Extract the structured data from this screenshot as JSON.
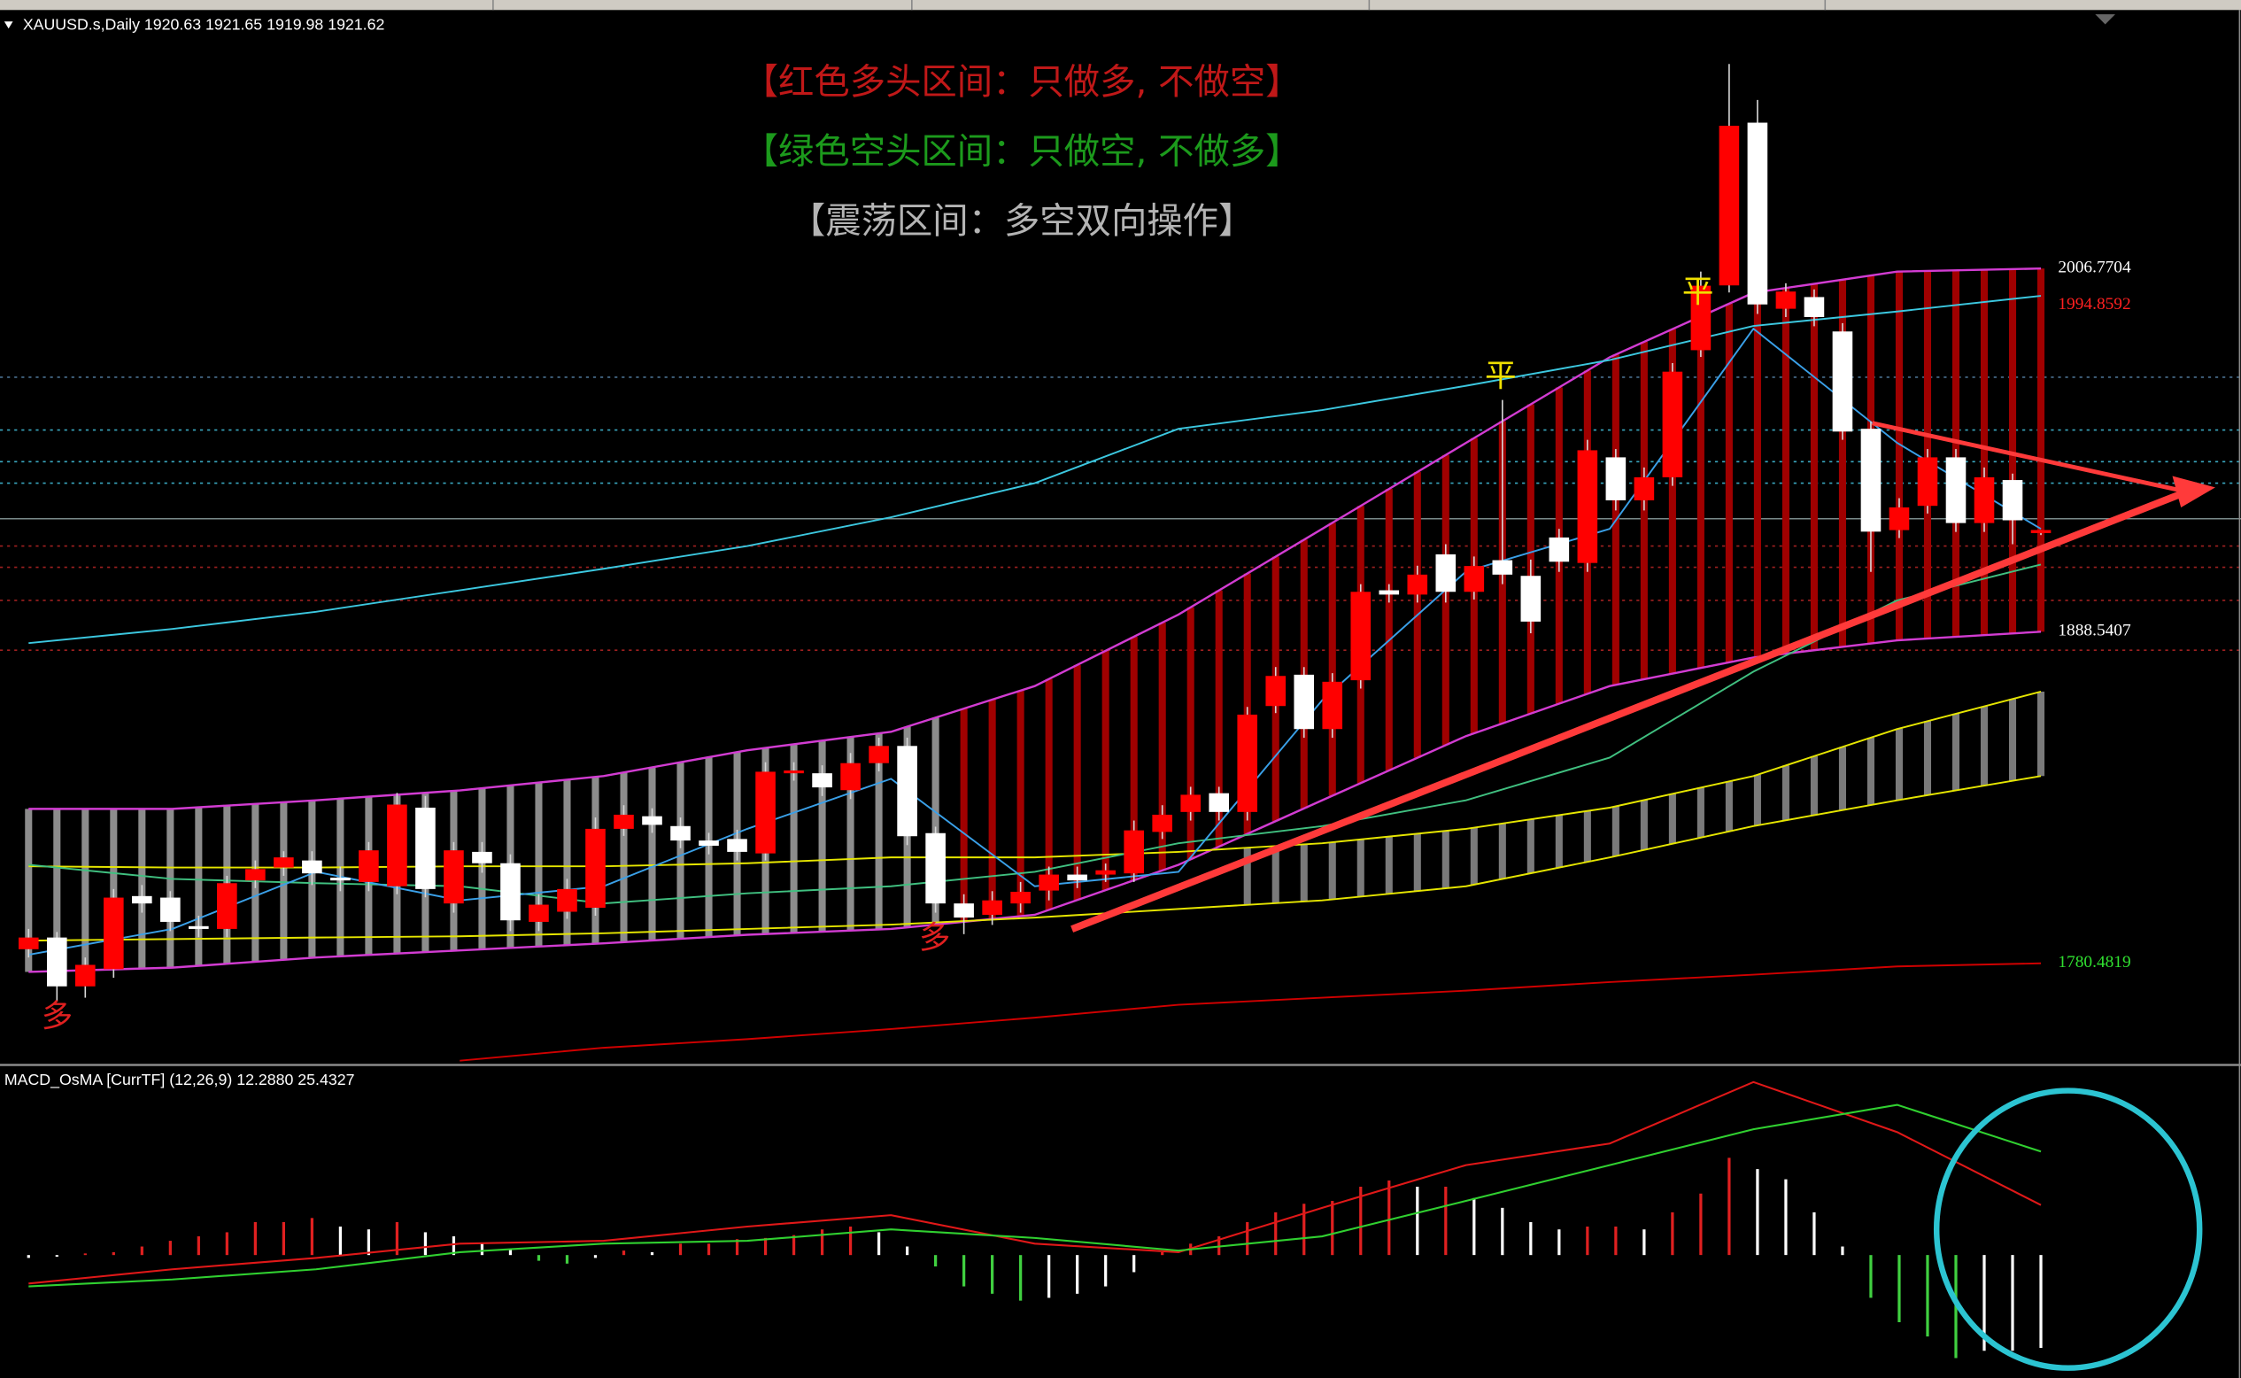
{
  "chart_data": [
    {
      "type": "candlestick",
      "header": "XAUUSD.s,Daily  1920.63 1921.65 1919.98 1921.62",
      "ylim": [
        1747.4,
        2089.6
      ],
      "up_color": "#ff0000",
      "down_color": "#ffffff",
      "wick_color": "#d8d8d8",
      "candles": [
        [
          1785.1,
          1791.7,
          1782.4,
          1788.9
        ],
        [
          1788.9,
          1790.7,
          1768.4,
          1773.0
        ],
        [
          1773.0,
          1782.4,
          1769.3,
          1780.0
        ],
        [
          1778.6,
          1804.7,
          1775.8,
          1801.9
        ],
        [
          1802.4,
          1806,
          1797,
          1800.0
        ],
        [
          1801.9,
          1804,
          1791,
          1794.0
        ],
        [
          1792.6,
          1796,
          1789,
          1791.7
        ],
        [
          1791.7,
          1809,
          1789,
          1806.6
        ],
        [
          1807.5,
          1814,
          1805,
          1811.2
        ],
        [
          1811.7,
          1817,
          1809,
          1815.0
        ],
        [
          1814.0,
          1817,
          1806,
          1809.8
        ],
        [
          1808.4,
          1812,
          1804,
          1807.5
        ],
        [
          1807.0,
          1820,
          1804,
          1817.3
        ],
        [
          1805.6,
          1836,
          1803,
          1832.2
        ],
        [
          1831.2,
          1835,
          1802,
          1804.7
        ],
        [
          1800.0,
          1820,
          1797,
          1817.3
        ],
        [
          1816.8,
          1820,
          1810,
          1813.1
        ],
        [
          1813.1,
          1816,
          1791,
          1794.5
        ],
        [
          1794.0,
          1803,
          1791,
          1799.6
        ],
        [
          1797.3,
          1808,
          1795,
          1804.7
        ],
        [
          1798.6,
          1828,
          1796,
          1824.3
        ],
        [
          1824.3,
          1832,
          1822,
          1828.9
        ],
        [
          1828.4,
          1831,
          1823,
          1825.6
        ],
        [
          1825.2,
          1828,
          1818,
          1820.5
        ],
        [
          1820.5,
          1823,
          1816,
          1818.8
        ],
        [
          1821.0,
          1824,
          1814,
          1816.8
        ],
        [
          1816.3,
          1846,
          1814,
          1842.9
        ],
        [
          1842.4,
          1846,
          1840,
          1843.3
        ],
        [
          1842.4,
          1845,
          1835,
          1837.8
        ],
        [
          1836.9,
          1849,
          1834,
          1845.7
        ],
        [
          1845.7,
          1854,
          1843,
          1851.3
        ],
        [
          1851.3,
          1854,
          1819,
          1821.9
        ],
        [
          1822.9,
          1825,
          1797,
          1800.0
        ],
        [
          1800.0,
          1803,
          1790,
          1795.4
        ],
        [
          1796.3,
          1804,
          1793,
          1801.0
        ],
        [
          1800.0,
          1807,
          1797,
          1803.8
        ],
        [
          1804.2,
          1812,
          1801,
          1809.4
        ],
        [
          1809.4,
          1812,
          1805,
          1807.5
        ],
        [
          1809.4,
          1813,
          1807,
          1810.8
        ],
        [
          1809.8,
          1827,
          1807,
          1823.8
        ],
        [
          1823.3,
          1832,
          1821,
          1828.9
        ],
        [
          1829.8,
          1838,
          1827,
          1835.4
        ],
        [
          1835.9,
          1838,
          1827,
          1829.8
        ],
        [
          1829.8,
          1864,
          1827,
          1861.5
        ],
        [
          1864.3,
          1877,
          1862,
          1874.1
        ],
        [
          1874.5,
          1877,
          1854,
          1856.8
        ],
        [
          1856.8,
          1875,
          1854,
          1872.2
        ],
        [
          1872.7,
          1904,
          1870,
          1901.5
        ],
        [
          1902.0,
          1904,
          1898,
          1900.6
        ],
        [
          1900.6,
          1910,
          1898,
          1907.1
        ],
        [
          1913.7,
          1917,
          1898,
          1901.5
        ],
        [
          1901.5,
          1913,
          1899,
          1909.9
        ],
        [
          1911.8,
          1964,
          1904,
          1907.1
        ],
        [
          1906.7,
          1912,
          1888,
          1891.8
        ],
        [
          1919.2,
          1922,
          1908,
          1911.3
        ],
        [
          1910.9,
          1951,
          1908,
          1947.6
        ],
        [
          1945.3,
          1948,
          1928,
          1931.3
        ],
        [
          1931.3,
          1942,
          1928,
          1938.8
        ],
        [
          1938.8,
          1976,
          1936,
          1973.2
        ],
        [
          1980.2,
          2005.8,
          1978,
          2001.2
        ],
        [
          2001.3,
          2073.4,
          1999,
          2053.3
        ],
        [
          2054.3,
          2061.7,
          1992,
          1995.1
        ],
        [
          1993.7,
          2002,
          1991,
          1999.3
        ],
        [
          1997.5,
          2000,
          1988,
          1991.0
        ],
        [
          1986.3,
          1989,
          1951,
          1953.7
        ],
        [
          1954.6,
          1957,
          1908,
          1921.1
        ],
        [
          1921.6,
          1932,
          1919,
          1929.0
        ],
        [
          1929.5,
          1948,
          1927,
          1945.3
        ],
        [
          1945.3,
          1948,
          1921,
          1923.9
        ],
        [
          1923.9,
          1942,
          1921,
          1938.8
        ],
        [
          1937.9,
          1940,
          1917,
          1924.8
        ],
        [
          1920.63,
          1921.65,
          1919.98,
          1921.62
        ]
      ],
      "band": {
        "color": "#d23cd2",
        "bar_colors": [
          "#8c8c8c",
          "#a00000"
        ],
        "red_from": 33,
        "upper": [
          1830.8,
          1830.8,
          1833.6,
          1836.8,
          1841.5,
          1849.9,
          1855.9,
          1870.8,
          1894.1,
          1922.0,
          1950.0,
          1977.9,
          1998.9,
          2005.8,
          2006.8
        ],
        "lower": [
          1777.7,
          1779.1,
          1782.4,
          1784.7,
          1787.0,
          1789.8,
          1791.7,
          1796.3,
          1812.6,
          1833.6,
          1854.5,
          1870.8,
          1880.1,
          1885.7,
          1888.5
        ]
      },
      "channel": {
        "color": "#e6e600",
        "bar_color": "#7a7a7a",
        "bars_from": 43,
        "upper": [
          1812.1,
          1811.7,
          1811.7,
          1812.1,
          1812.1,
          1813.1,
          1815.0,
          1815.0,
          1816.8,
          1819.6,
          1824.3,
          1831.2,
          1841.5,
          1856.8,
          1869.0
        ],
        "lower": [
          1787.9,
          1788.4,
          1788.9,
          1789.3,
          1790.3,
          1791.7,
          1793.1,
          1795.4,
          1798.2,
          1801.0,
          1805.6,
          1815.0,
          1825.2,
          1833.6,
          1841.5
        ]
      },
      "lines": [
        {
          "color": "#3cc8e0",
          "values": [
            1884.8,
            1889.4,
            1895.0,
            1902.0,
            1909.0,
            1916.4,
            1925.8,
            1936.9,
            1954.6,
            1960.7,
            1968.6,
            1977.0,
            1988.1,
            1992.8,
            1997.9
          ]
        },
        {
          "color": "#d00000",
          "values": [
            null,
            null,
            null,
            1748.8,
            1753.0,
            1755.8,
            1759.1,
            1762.8,
            1767.0,
            1769.3,
            1771.6,
            1774.4,
            1776.8,
            1779.5,
            1780.5
          ]
        },
        {
          "color": "#40c080",
          "values": [
            1812.6,
            1808.0,
            1806.6,
            1805.6,
            1800.0,
            1803.3,
            1805.6,
            1810.3,
            1819.6,
            1825.2,
            1833.6,
            1847.5,
            1875.5,
            1898.7,
            1910.4
          ]
        },
        {
          "color": "#3aa0e8",
          "values": [
            1783.3,
            1791.7,
            1810.3,
            1801.0,
            1805.6,
            1824.3,
            1840.6,
            1805.6,
            1810.3,
            1866.2,
            1908.1,
            1922.0,
            1987.2,
            1950.0,
            1922.0
          ]
        }
      ],
      "levels": [
        {
          "value": 1971.4,
          "color": "#4a7090"
        },
        {
          "value": 1954.2,
          "color": "#3aa8c0"
        },
        {
          "value": 1943.9,
          "color": "#3aa8c0"
        },
        {
          "value": 1936.9,
          "color": "#3aa8c0"
        },
        {
          "value": 1925.3,
          "color": "#7a8a8a"
        },
        {
          "value": 1916.4,
          "color": "#a02020"
        },
        {
          "value": 1909.5,
          "color": "#a02020"
        },
        {
          "value": 1898.7,
          "color": "#a02020"
        },
        {
          "value": 1882.5,
          "color": "#a02020"
        }
      ],
      "price_labels": [
        {
          "value": 2006.7704,
          "label": "2006.7704",
          "color": "#ffffff"
        },
        {
          "value": 1994.8592,
          "label": "1994.8592",
          "color": "#ff2020"
        },
        {
          "value": 1888.5407,
          "label": "1888.5407",
          "color": "#ffffff"
        },
        {
          "value": 1780.4819,
          "label": "1780.4819",
          "color": "#30e030"
        }
      ],
      "notes": [
        {
          "text": "【红色多头区间：只做多, 不做空】",
          "color": "#c01818"
        },
        {
          "text": "【绿色空头区间：只做空, 不做多】",
          "color": "#1c9a1c"
        },
        {
          "text": "【震荡区间：多空双向操作】",
          "color": "#b4b4b4"
        }
      ],
      "annotations": [
        {
          "text": "平",
          "color": "#f0e000"
        },
        {
          "text": "平",
          "color": "#f0e000"
        },
        {
          "text": "多",
          "color": "#e02020"
        },
        {
          "text": "多",
          "color": "#e02020"
        }
      ]
    },
    {
      "type": "macd",
      "label": "MACD_OsMA [CurrTF] (12,26,9) 12.2880 25.4327",
      "ylim": [
        -30.2,
        46.7
      ],
      "bar_colors": [
        "#e02020",
        "#ffffff",
        "#40d040"
      ],
      "histogram": [
        -0.7,
        -0.4,
        0.4,
        0.7,
        2.1,
        3.5,
        4.6,
        5.6,
        8.1,
        8.1,
        9.1,
        7.0,
        6.3,
        8.1,
        5.6,
        4.6,
        2.8,
        1.4,
        -1.4,
        -2.1,
        -0.7,
        1.1,
        0.7,
        2.8,
        2.8,
        3.9,
        4.2,
        4.9,
        6.3,
        7.0,
        5.6,
        2.1,
        -2.8,
        -7.7,
        -9.5,
        -11.2,
        -10.5,
        -9.5,
        -7.7,
        -4.2,
        0.7,
        2.8,
        4.6,
        8.1,
        10.5,
        12.6,
        13.3,
        16.8,
        18.3,
        16.8,
        16.8,
        14.0,
        11.6,
        8.1,
        6.3,
        7.0,
        7.0,
        6.3,
        10.5,
        15.1,
        23.9,
        21.1,
        18.6,
        10.5,
        2.1,
        -10.5,
        -16.5,
        -20.0,
        -25.3,
        -23.5,
        -23.5,
        -22.8
      ],
      "series": [
        {
          "color": "#e01818",
          "values": [
            -7.0,
            -3.5,
            -0.7,
            2.8,
            3.5,
            7.0,
            9.8,
            2.8,
            0.7,
            11.6,
            22.1,
            27.4,
            42.5,
            30.2,
            12.288
          ]
        },
        {
          "color": "#30d030",
          "values": [
            -7.7,
            -6.0,
            -3.5,
            0.7,
            2.8,
            3.5,
            6.3,
            4.2,
            1.1,
            4.6,
            13.3,
            22.1,
            30.9,
            36.9,
            25.4327
          ]
        }
      ]
    }
  ]
}
